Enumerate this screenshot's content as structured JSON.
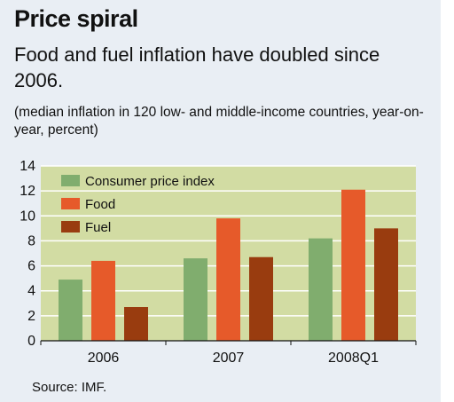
{
  "title": "Price spiral",
  "subtitle": "Food and fuel inflation have doubled since 2006.",
  "note": "(median inflation in 120 low- and middle-income countries, year-on-year, percent)",
  "source": "Source: IMF.",
  "chart_data": {
    "type": "bar",
    "categories": [
      "2006",
      "2007",
      "2008Q1"
    ],
    "series": [
      {
        "name": "Consumer price index",
        "color": "#80ad6e",
        "values": [
          4.9,
          6.6,
          8.2
        ]
      },
      {
        "name": "Food",
        "color": "#e65a2a",
        "values": [
          6.4,
          9.8,
          12.1
        ]
      },
      {
        "name": "Fuel",
        "color": "#993c0f",
        "values": [
          2.7,
          6.7,
          9.0
        ]
      }
    ],
    "ylim": [
      0,
      14
    ],
    "yticks": [
      0,
      2,
      4,
      6,
      8,
      10,
      12,
      14
    ],
    "grid": true,
    "legend": "top-left",
    "plot_background": "#d2dca3",
    "grid_color": "#ffffff"
  }
}
